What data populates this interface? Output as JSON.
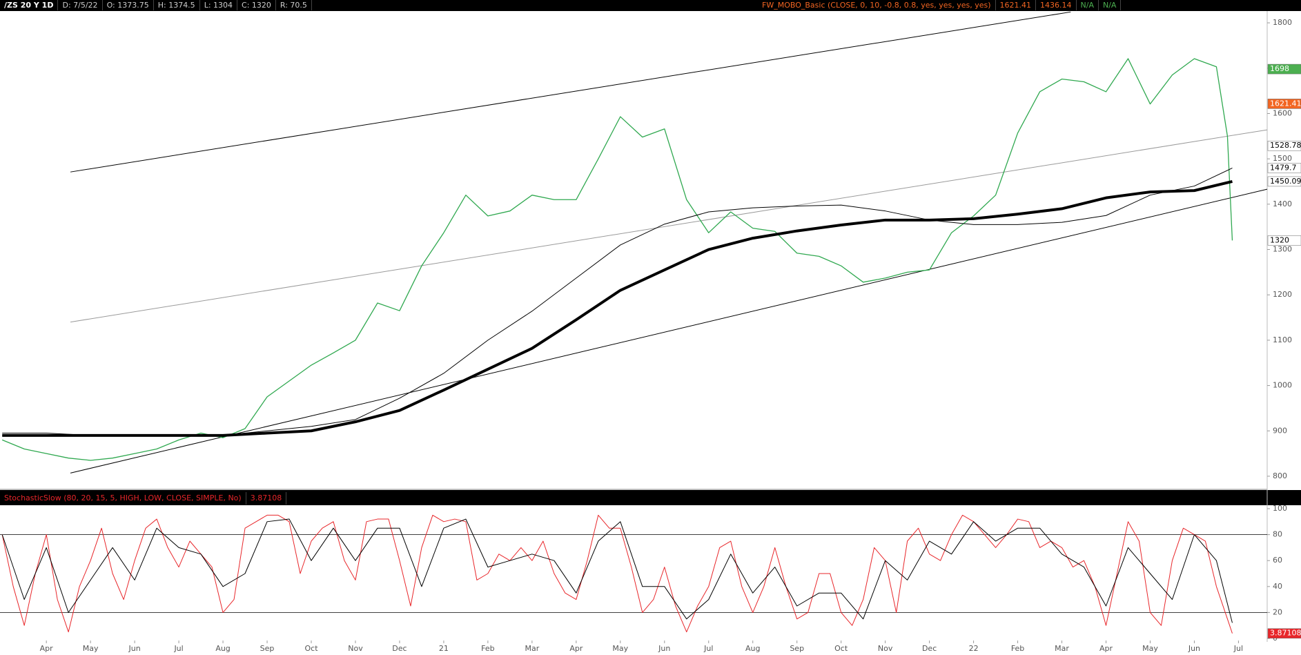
{
  "chart_data": [
    {
      "type": "line",
      "header": [
        "/ZS 20 Y 1D",
        "D: 7/5/22",
        "O: 1373.75",
        "H: 1374.5",
        "L: 1304",
        "C: 1320",
        "R: 70.5"
      ],
      "study": [
        "FW_MOBO_Basic (CLOSE, 0, 10, -0.8, 0.8, yes, yes, yes, yes)",
        "1621.41",
        "1436.14",
        "N/A",
        "N/A"
      ],
      "xlim": [
        -1.05,
        27.65
      ],
      "ylim": [
        771,
        1826
      ],
      "yticks": [
        800,
        900,
        1000,
        1100,
        1200,
        1300,
        1400,
        1500,
        1600,
        1700,
        1800
      ],
      "series": [
        {
          "color": "#2fa84f",
          "width": 1.3,
          "x": [
            -1,
            -0.5,
            0,
            0.5,
            1,
            1.5,
            2,
            2.5,
            3,
            3.5,
            4,
            4.5,
            5,
            5.5,
            6,
            6.5,
            7,
            7.5,
            8,
            8.5,
            9,
            9.5,
            10,
            10.5,
            11,
            11.5,
            12,
            12.5,
            13,
            13.5,
            14,
            14.5,
            15,
            15.5,
            16,
            16.5,
            17,
            17.5,
            18,
            18.5,
            19,
            19.5,
            20,
            20.5,
            21,
            21.5,
            22,
            22.5,
            23,
            23.5,
            24,
            24.5,
            25,
            25.5,
            26,
            26.5,
            26.75,
            26.86
          ],
          "values": [
            880,
            860,
            850,
            840,
            835,
            840,
            850,
            860,
            880,
            895,
            885,
            905,
            975,
            1010,
            1045,
            1072,
            1100,
            1182,
            1165,
            1264,
            1337,
            1420,
            1374,
            1385,
            1420,
            1410,
            1410,
            1500,
            1593,
            1548,
            1566,
            1410,
            1337,
            1383,
            1347,
            1340,
            1292,
            1285,
            1264,
            1228,
            1237,
            1250,
            1255,
            1337,
            1374,
            1420,
            1557,
            1648,
            1676,
            1670,
            1648,
            1721,
            1621,
            1685,
            1721,
            1703,
            1550,
            1320
          ]
        },
        {
          "color": "#000000",
          "width": 1,
          "x": [
            -1,
            0,
            1,
            2,
            3,
            4,
            5,
            6,
            7,
            8,
            9,
            10,
            11,
            12,
            13,
            14,
            15,
            16,
            17,
            18,
            19,
            20,
            21,
            22,
            23,
            24,
            25,
            26,
            26.86
          ],
          "values": [
            895,
            895,
            890,
            890,
            890,
            890,
            900,
            910,
            925,
            972,
            1027,
            1100,
            1164,
            1237,
            1310,
            1356,
            1383,
            1392,
            1396,
            1398,
            1385,
            1365,
            1355,
            1355,
            1360,
            1375,
            1420,
            1440,
            1479.7
          ]
        },
        {
          "color": "#000000",
          "width": 4,
          "x": [
            -1,
            0,
            1,
            2,
            3,
            4,
            5,
            6,
            7,
            8,
            9,
            10,
            11,
            12,
            13,
            14,
            15,
            16,
            17,
            18,
            19,
            20,
            21,
            22,
            23,
            24,
            25,
            26,
            26.86
          ],
          "values": [
            890,
            890,
            890,
            890,
            890,
            890,
            895,
            900,
            920,
            945,
            990,
            1036,
            1082,
            1145,
            1210,
            1255,
            1300,
            1325,
            1341,
            1354,
            1365,
            1365,
            1368,
            1378,
            1390,
            1414,
            1427,
            1430,
            1450.09
          ]
        }
      ],
      "trend_lines": [
        {
          "color": "#000000",
          "x": [
            0.545,
            23.2
          ],
          "y": [
            1471,
            1824
          ]
        },
        {
          "color": "#999999",
          "x": [
            0.545,
            27.65
          ],
          "y": [
            1140,
            1564
          ]
        },
        {
          "color": "#000000",
          "x": [
            0.545,
            27.65
          ],
          "y": [
            807,
            1433
          ]
        }
      ],
      "price_markers": [
        {
          "value": 1698,
          "color": "#4caf50"
        },
        {
          "value": 1621.41,
          "color": "#f26522"
        },
        {
          "value": 1528.78,
          "color": "#ffffff"
        },
        {
          "value": 1479.7,
          "color": "#ffffff"
        },
        {
          "value": 1450.09,
          "color": "#ffffff"
        },
        {
          "value": 1320,
          "color": "#ffffff"
        }
      ]
    },
    {
      "type": "line",
      "title": "StochasticSlow (80, 20, 15, 5, HIGH, LOW, CLOSE, SIMPLE, No)",
      "title_value": "3.87108",
      "xlim": [
        -1.05,
        27.65
      ],
      "ylim": [
        -1.6,
        103.2
      ],
      "yticks": [
        0,
        20,
        40,
        60,
        80,
        100
      ],
      "levels": [
        20,
        80
      ],
      "xticks": [
        {
          "value": 0,
          "label": "Apr"
        },
        {
          "value": 1,
          "label": "May"
        },
        {
          "value": 2,
          "label": "Jun"
        },
        {
          "value": 3,
          "label": "Jul"
        },
        {
          "value": 4,
          "label": "Aug"
        },
        {
          "value": 5,
          "label": "Sep"
        },
        {
          "value": 6,
          "label": "Oct"
        },
        {
          "value": 7,
          "label": "Nov"
        },
        {
          "value": 8,
          "label": "Dec"
        },
        {
          "value": 9,
          "label": "21"
        },
        {
          "value": 10,
          "label": "Feb"
        },
        {
          "value": 11,
          "label": "Mar"
        },
        {
          "value": 12,
          "label": "Apr"
        },
        {
          "value": 13,
          "label": "May"
        },
        {
          "value": 14,
          "label": "Jun"
        },
        {
          "value": 15,
          "label": "Jul"
        },
        {
          "value": 16,
          "label": "Aug"
        },
        {
          "value": 17,
          "label": "Sep"
        },
        {
          "value": 18,
          "label": "Oct"
        },
        {
          "value": 19,
          "label": "Nov"
        },
        {
          "value": 20,
          "label": "Dec"
        },
        {
          "value": 21,
          "label": "22"
        },
        {
          "value": 22,
          "label": "Feb"
        },
        {
          "value": 23,
          "label": "Mar"
        },
        {
          "value": 24,
          "label": "Apr"
        },
        {
          "value": 25,
          "label": "May"
        },
        {
          "value": 26,
          "label": "Jun"
        },
        {
          "value": 27,
          "label": "Jul"
        }
      ],
      "series": [
        {
          "color": "#e8262a",
          "width": 1,
          "x": [
            -1,
            -0.75,
            -0.5,
            -0.25,
            0,
            0.25,
            0.5,
            0.75,
            1,
            1.25,
            1.5,
            1.75,
            2,
            2.25,
            2.5,
            2.75,
            3,
            3.25,
            3.5,
            3.75,
            4,
            4.25,
            4.5,
            4.75,
            5,
            5.25,
            5.5,
            5.75,
            6,
            6.25,
            6.5,
            6.75,
            7,
            7.25,
            7.5,
            7.75,
            8,
            8.25,
            8.5,
            8.75,
            9,
            9.25,
            9.5,
            9.75,
            10,
            10.25,
            10.5,
            10.75,
            11,
            11.25,
            11.5,
            11.75,
            12,
            12.25,
            12.5,
            12.75,
            13,
            13.25,
            13.5,
            13.75,
            14,
            14.25,
            14.5,
            14.75,
            15,
            15.25,
            15.5,
            15.75,
            16,
            16.25,
            16.5,
            16.75,
            17,
            17.25,
            17.5,
            17.75,
            18,
            18.25,
            18.5,
            18.75,
            19,
            19.25,
            19.5,
            19.75,
            20,
            20.25,
            20.5,
            20.75,
            21,
            21.25,
            21.5,
            21.75,
            22,
            22.25,
            22.5,
            22.75,
            23,
            23.25,
            23.5,
            23.75,
            24,
            24.25,
            24.5,
            24.75,
            25,
            25.25,
            25.5,
            25.75,
            26,
            26.25,
            26.5,
            26.75,
            26.86
          ],
          "values": [
            80,
            40,
            10,
            50,
            80,
            30,
            5,
            40,
            60,
            85,
            50,
            30,
            60,
            85,
            92,
            70,
            55,
            75,
            65,
            55,
            20,
            30,
            85,
            90,
            95,
            95,
            90,
            50,
            75,
            85,
            90,
            60,
            45,
            90,
            92,
            92,
            60,
            25,
            70,
            95,
            90,
            92,
            90,
            45,
            50,
            65,
            60,
            70,
            60,
            75,
            50,
            35,
            30,
            60,
            95,
            85,
            85,
            55,
            20,
            30,
            55,
            25,
            5,
            25,
            40,
            70,
            75,
            40,
            20,
            40,
            70,
            40,
            15,
            20,
            50,
            50,
            20,
            10,
            30,
            70,
            60,
            20,
            75,
            85,
            65,
            60,
            80,
            95,
            90,
            80,
            70,
            80,
            92,
            90,
            70,
            75,
            70,
            55,
            60,
            40,
            10,
            50,
            90,
            75,
            20,
            10,
            60,
            85,
            80,
            75,
            40,
            15,
            3.87108
          ]
        },
        {
          "color": "#000000",
          "width": 1,
          "x": [
            -1,
            -0.5,
            0,
            0.5,
            1,
            1.5,
            2,
            2.5,
            3,
            3.5,
            4,
            4.5,
            5,
            5.5,
            6,
            6.5,
            7,
            7.5,
            8,
            8.5,
            9,
            9.5,
            10,
            10.5,
            11,
            11.5,
            12,
            12.5,
            13,
            13.5,
            14,
            14.5,
            15,
            15.5,
            16,
            16.5,
            17,
            17.5,
            18,
            18.5,
            19,
            19.5,
            20,
            20.5,
            21,
            21.5,
            22,
            22.5,
            23,
            23.5,
            24,
            24.5,
            25,
            25.5,
            26,
            26.5,
            26.86
          ],
          "values": [
            80,
            30,
            70,
            20,
            45,
            70,
            45,
            85,
            70,
            65,
            40,
            50,
            90,
            92,
            60,
            85,
            60,
            85,
            85,
            40,
            85,
            92,
            55,
            60,
            65,
            60,
            35,
            75,
            90,
            40,
            40,
            15,
            30,
            65,
            35,
            55,
            25,
            35,
            35,
            15,
            60,
            45,
            75,
            65,
            90,
            75,
            85,
            85,
            65,
            55,
            25,
            70,
            50,
            30,
            80,
            60,
            12
          ]
        }
      ],
      "price_markers": [
        {
          "value": 3.87108,
          "color": "#e8262a"
        }
      ]
    }
  ]
}
